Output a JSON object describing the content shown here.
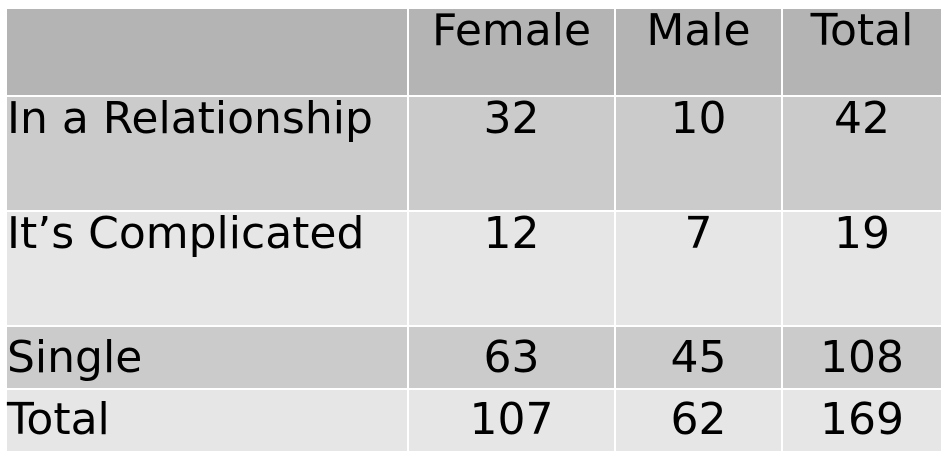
{
  "chart_data": {
    "type": "table",
    "columns": [
      "",
      "Female",
      "Male",
      "Total"
    ],
    "rows": [
      {
        "label": "In a Relationship",
        "values": [
          "32",
          "10",
          "42"
        ]
      },
      {
        "label": "It’s Complicated",
        "values": [
          "12",
          "7",
          "19"
        ]
      },
      {
        "label": "Single",
        "values": [
          "63",
          "45",
          "108"
        ]
      },
      {
        "label": "Total",
        "values": [
          "107",
          "62",
          "169"
        ]
      }
    ],
    "colors": {
      "header_bg": "#b4b4b4",
      "row_dark_bg": "#cbcbcb",
      "row_light_bg": "#e6e6e6",
      "grid_line": "#ffffff"
    }
  }
}
